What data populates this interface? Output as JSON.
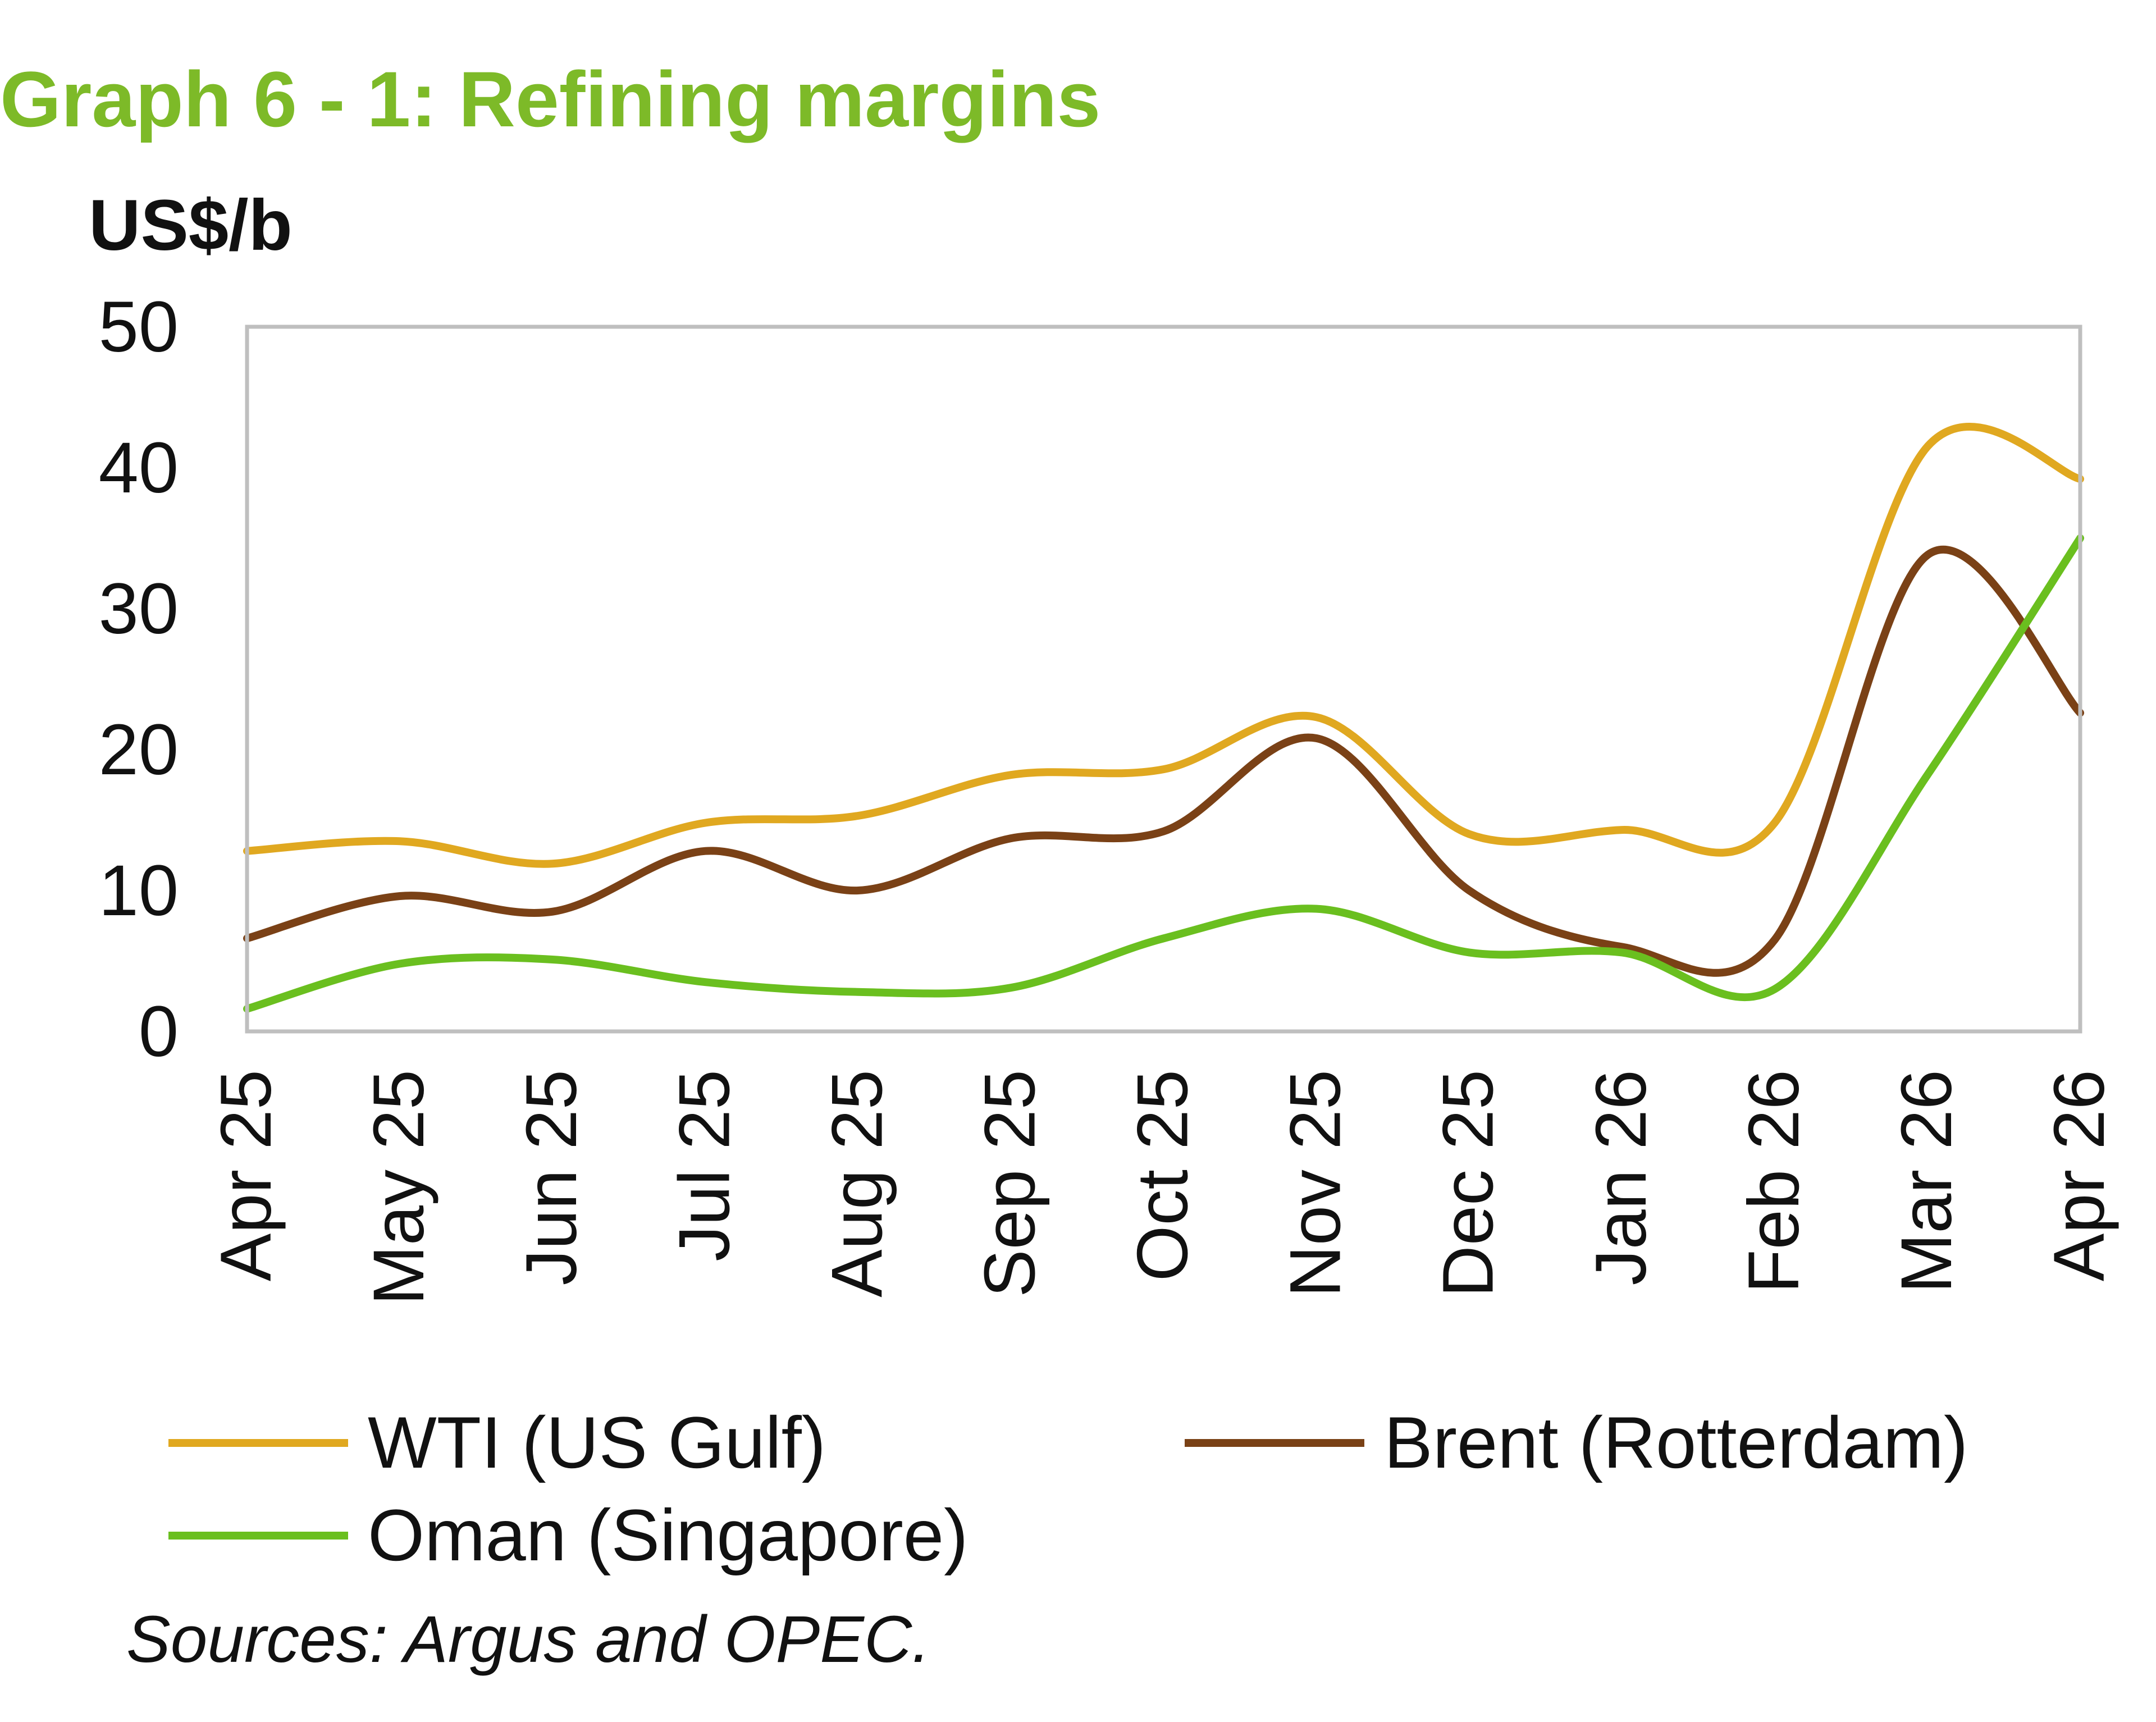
{
  "chart_data": {
    "type": "line",
    "title": "Graph 6 - 1: Refining margins",
    "ylabel": "US$/b",
    "xlabel": "",
    "ylim": [
      0,
      50
    ],
    "yticks": [
      "0",
      "10",
      "20",
      "30",
      "40",
      "50"
    ],
    "categories": [
      "Apr 25",
      "May 25",
      "Jun 25",
      "Jul 25",
      "Aug 25",
      "Sep 25",
      "Oct 25",
      "Nov 25",
      "Dec 25",
      "Jan 26",
      "Feb 26",
      "Mar 26",
      "Apr 26"
    ],
    "grid": false,
    "legend_position": "bottom",
    "series": [
      {
        "name": "WTI (US Gulf)",
        "color": "#e0a820",
        "values": [
          12.8,
          13.5,
          11.9,
          14.8,
          15.3,
          18.2,
          18.6,
          22.3,
          14.0,
          14.3,
          14.8,
          41.5,
          39.2
        ]
      },
      {
        "name": "Brent (Rotterdam)",
        "color": "#7a4116",
        "values": [
          6.6,
          9.6,
          8.5,
          12.8,
          10.0,
          13.7,
          14.2,
          20.8,
          10.0,
          6.0,
          6.5,
          33.8,
          22.6
        ]
      },
      {
        "name": "Oman (Singapore)",
        "color": "#6abf1f",
        "values": [
          1.6,
          4.8,
          5.1,
          3.5,
          2.8,
          3.1,
          6.6,
          8.7,
          5.6,
          5.6,
          3.0,
          18.2,
          35.0
        ]
      }
    ],
    "source": "Sources: Argus and OPEC."
  },
  "colors": {
    "title": "#7dba28",
    "axis": "#bfbfbf",
    "text": "#111111"
  }
}
